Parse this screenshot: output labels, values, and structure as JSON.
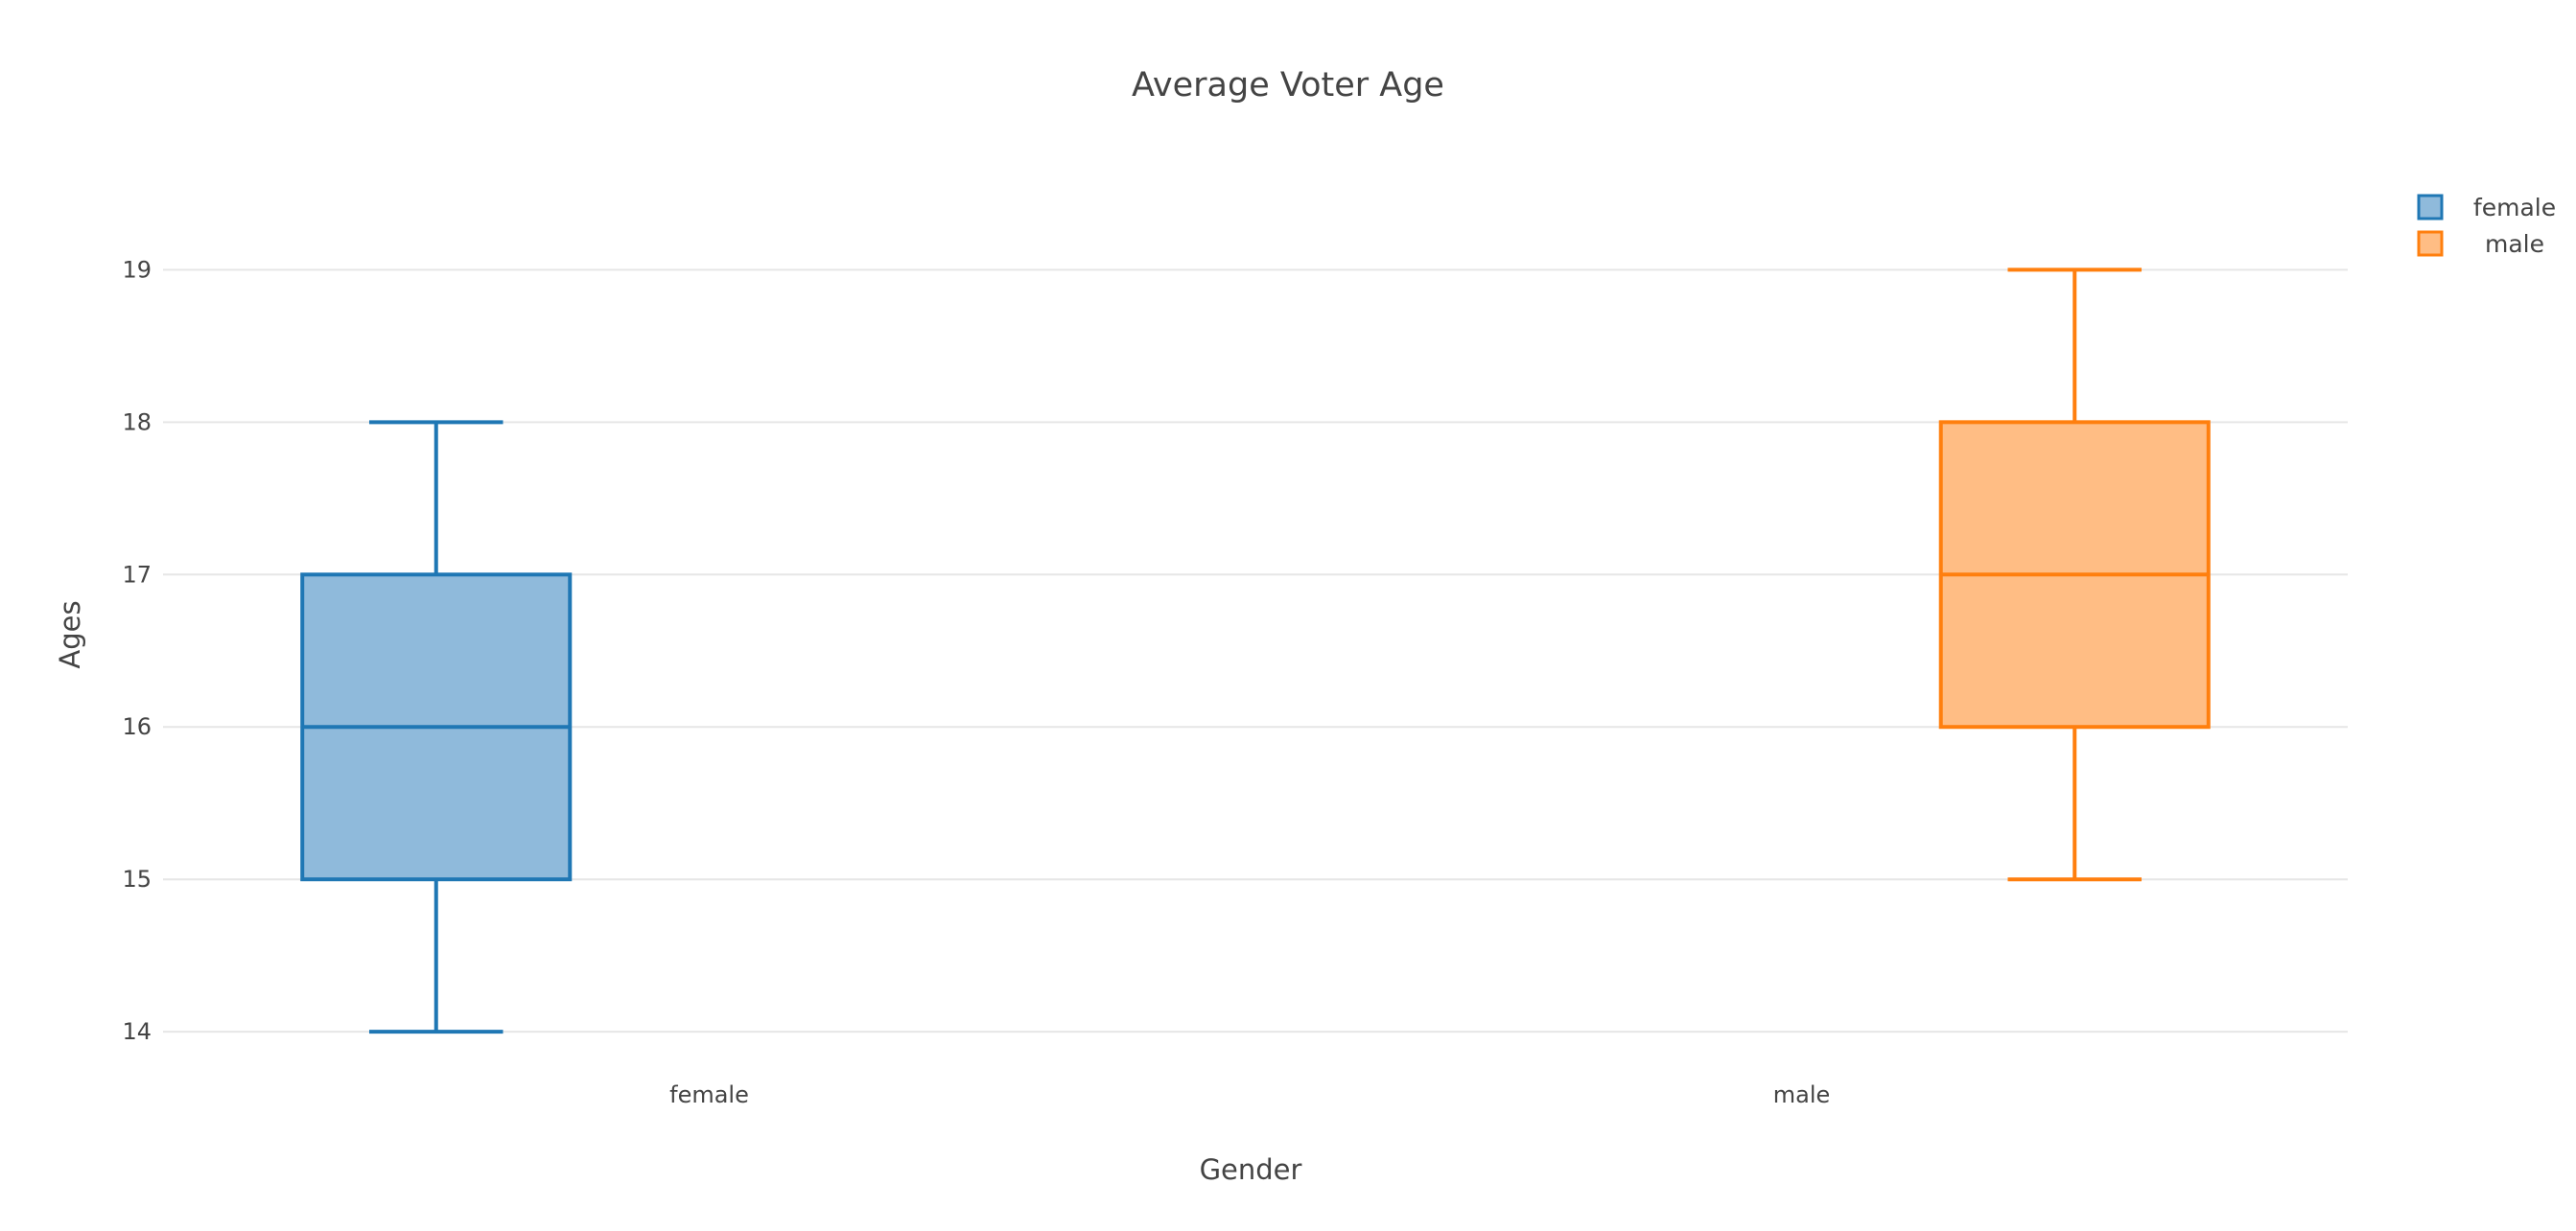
{
  "chart_data": {
    "type": "box",
    "title": "Average Voter Age",
    "xlabel": "Gender",
    "ylabel": "Ages",
    "categories": [
      "female",
      "male"
    ],
    "ylim": [
      13.85,
      19.6
    ],
    "yticks": [
      14,
      15,
      16,
      17,
      18,
      19
    ],
    "grid": true,
    "legend_position": "top-right",
    "series": [
      {
        "name": "female",
        "category": "female",
        "min": 14,
        "q1": 15,
        "median": 16,
        "q3": 17,
        "max": 18,
        "line_color": "#1f77b4",
        "fill_color": "#8fbadb"
      },
      {
        "name": "male",
        "category": "male",
        "min": 15,
        "q1": 16,
        "median": 17,
        "q3": 18,
        "max": 19,
        "line_color": "#ff7f0e",
        "fill_color": "#ffbd84"
      }
    ]
  }
}
